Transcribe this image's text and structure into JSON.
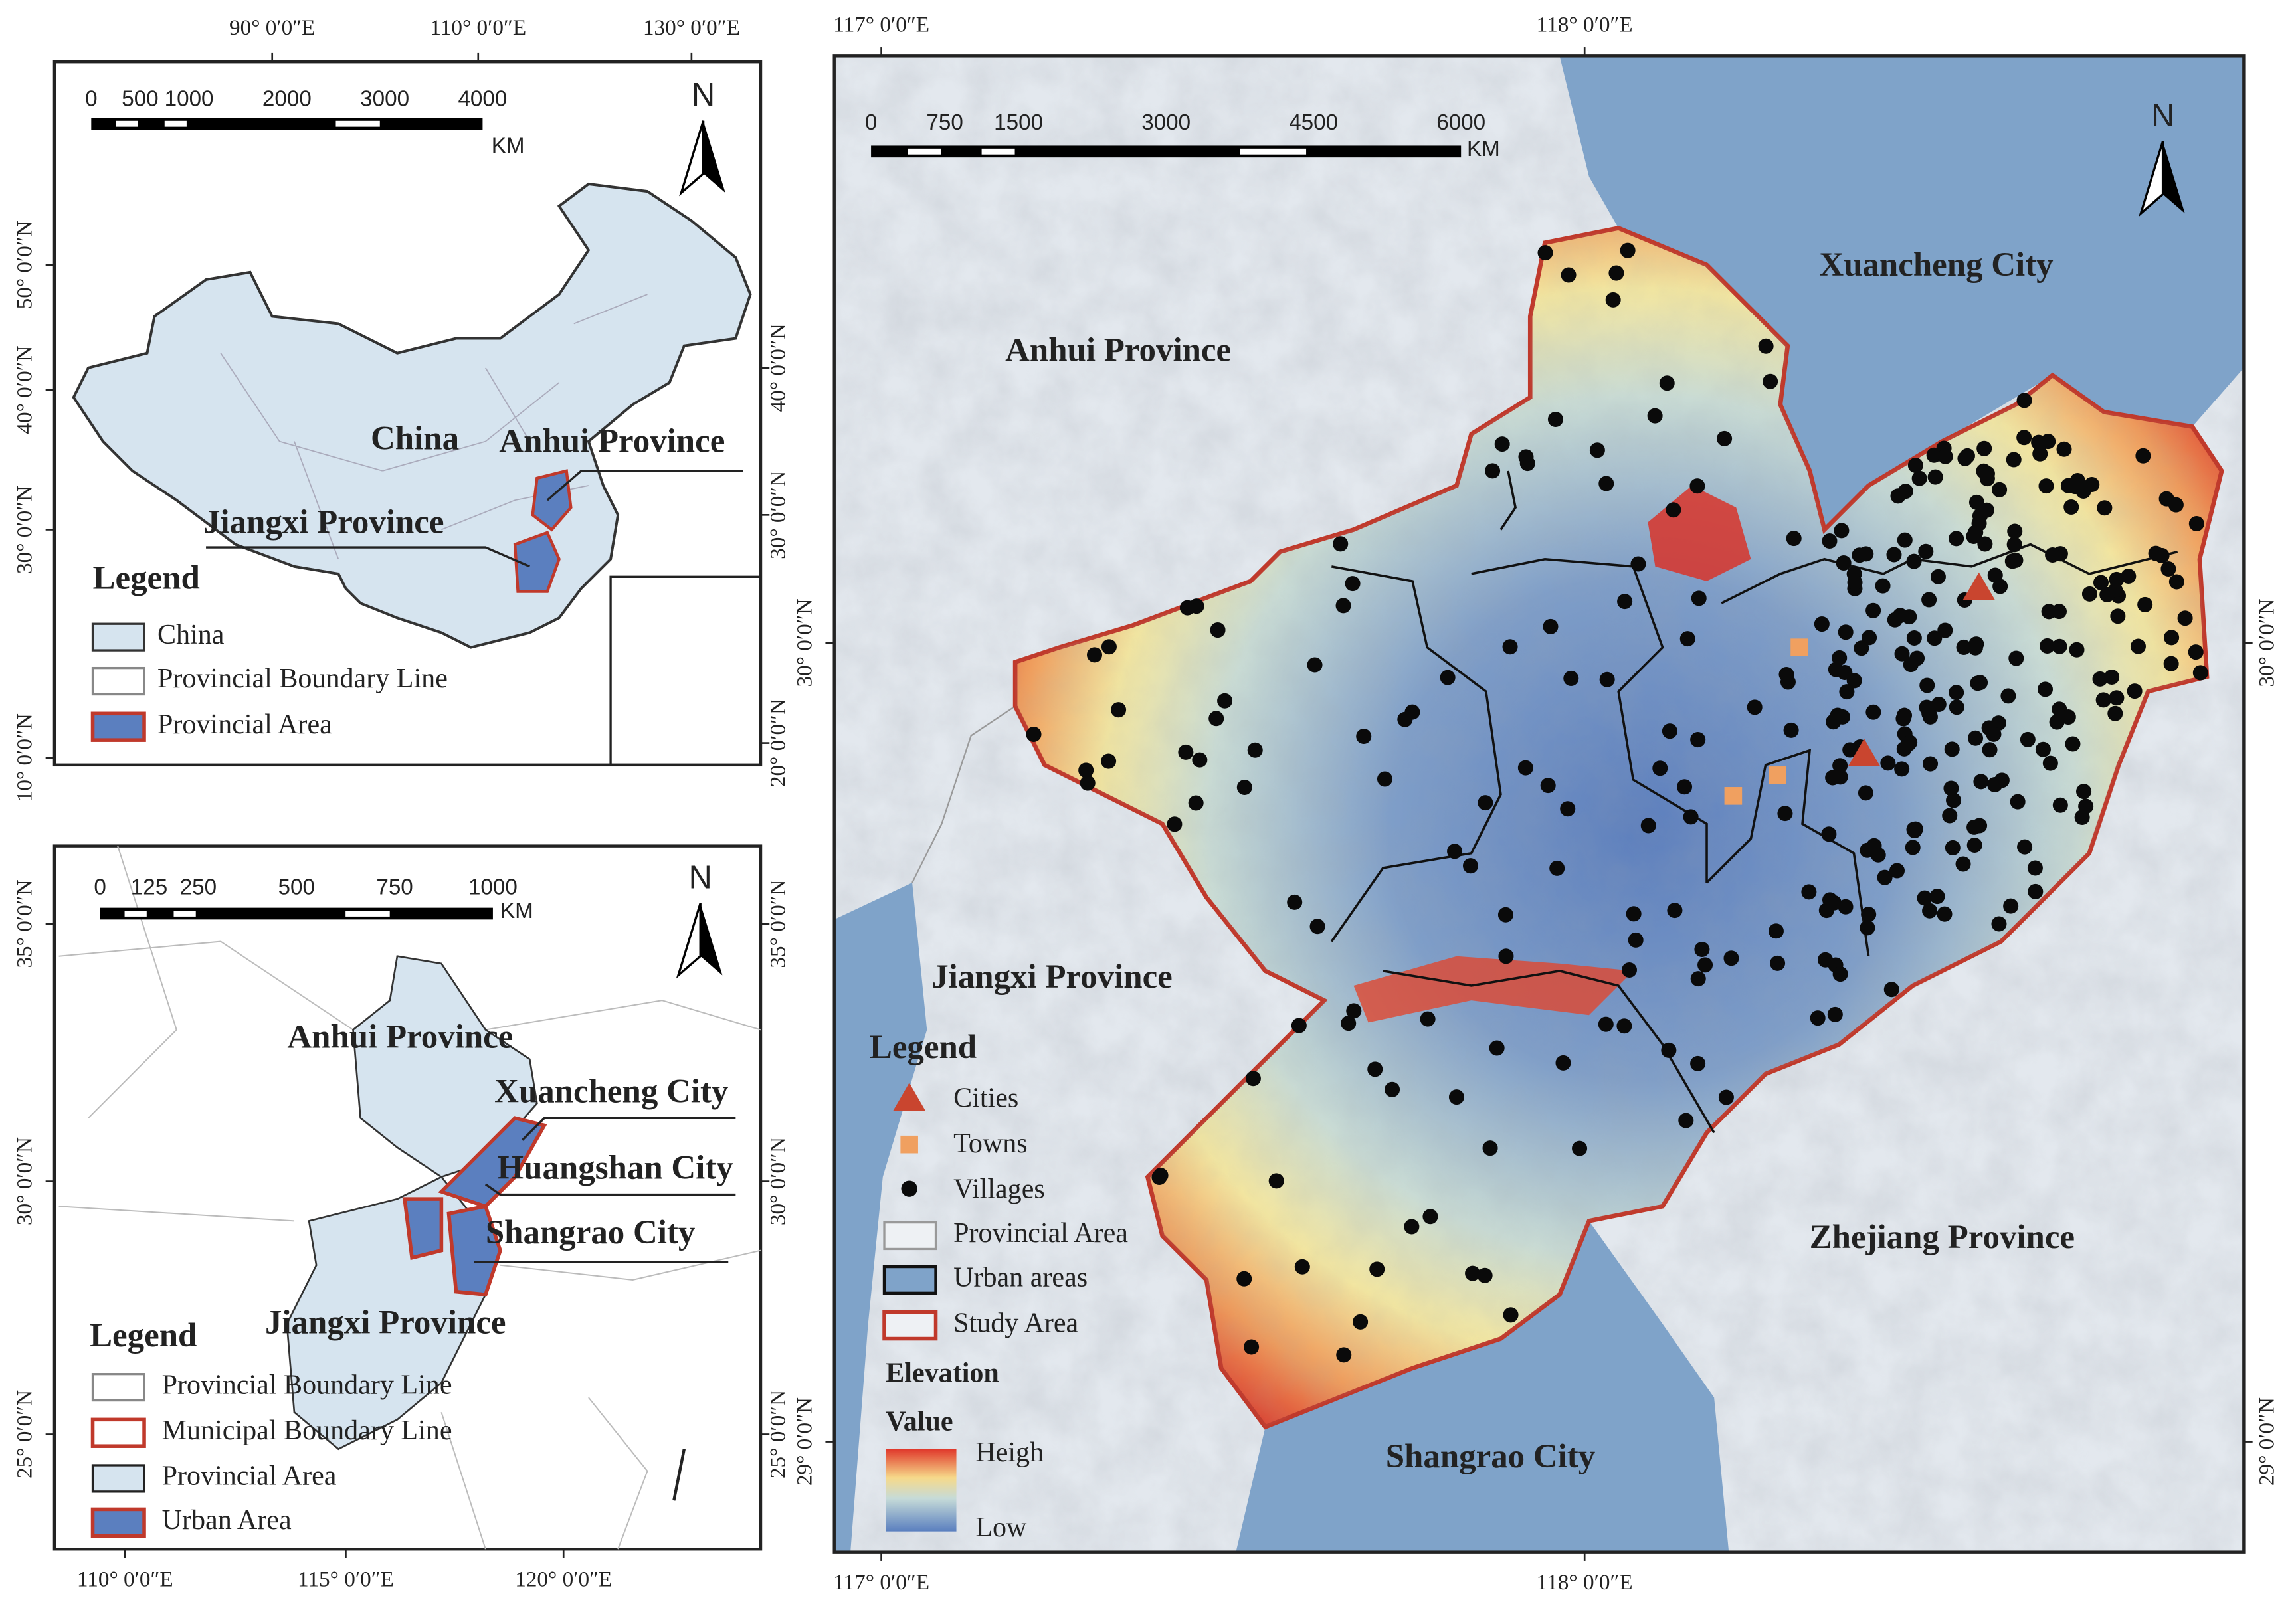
{
  "overview_map": {
    "lon_labels": [
      "90° 0′0″E",
      "110° 0′0″E",
      "130° 0′0″E"
    ],
    "lat_labels_left": [
      "50° 0′0″N",
      "40° 0′0″N",
      "30° 0′0″N",
      "10° 0′0″N"
    ],
    "lat_labels_right": [
      "40° 0′0″N",
      "30° 0′0″N",
      "20° 0′0″N"
    ],
    "scale_labels": [
      0,
      500,
      1000,
      2000,
      3000,
      4000
    ],
    "scale_unit": "KM",
    "north": "N",
    "labels": {
      "china": "China",
      "anhui": "Anhui Province",
      "jiangxi": "Jiangxi Province"
    },
    "legend": {
      "title": "Legend",
      "items": [
        "China",
        "Provincial Boundary Line",
        "Provincial Area"
      ]
    }
  },
  "regional_map": {
    "lon_labels": [
      "110° 0′0″E",
      "115° 0′0″E",
      "120° 0′0″E"
    ],
    "lat_labels": [
      "35° 0′0″N",
      "30° 0′0″N",
      "25° 0′0″N"
    ],
    "scale_labels": [
      0,
      125,
      250,
      500,
      750,
      1000
    ],
    "scale_unit": "KM",
    "north": "N",
    "labels": {
      "anhui": "Anhui Province",
      "xuancheng": "Xuancheng City",
      "huangshan": "Huangshan City",
      "shangrao": "Shangrao City",
      "jiangxi": "Jiangxi Province"
    },
    "legend": {
      "title": "Legend",
      "items": [
        "Provincial Boundary Line",
        "Municipal Boundary Line",
        "Provincial Area",
        "Urban Area"
      ]
    }
  },
  "study_map": {
    "lon_labels": [
      "117° 0′0″E",
      "118° 0′0″E"
    ],
    "lat_labels": [
      "30° 0′0″N",
      "29° 0′0″N"
    ],
    "scale_labels": [
      0,
      750,
      1500,
      3000,
      4500,
      6000
    ],
    "scale_unit": "KM",
    "north": "N",
    "labels": {
      "xuancheng": "Xuancheng City",
      "anhui": "Anhui Province",
      "jiangxi": "Jiangxi Province",
      "zhejiang": "Zhejiang Province",
      "shangrao": "Shangrao City"
    },
    "legend": {
      "title": "Legend",
      "items": [
        "Cities",
        "Towns",
        "Villages",
        "Provincial Area",
        "Urban areas",
        "Study Area"
      ],
      "elevation_title": "Elevation",
      "elevation_subtitle": "Value",
      "high": "Heigh",
      "low": "Low"
    }
  }
}
